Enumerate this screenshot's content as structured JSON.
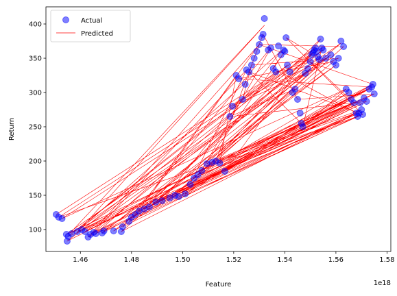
{
  "chart_data": {
    "type": "scatter",
    "xlabel": "Feature",
    "ylabel": "Return",
    "x_offset_label": "1e18",
    "xlim": [
      1.4465,
      1.5815
    ],
    "ylim": [
      68,
      425
    ],
    "x_ticks": [
      1.46,
      1.48,
      1.5,
      1.52,
      1.54,
      1.56,
      1.58
    ],
    "x_tick_labels": [
      "1.46",
      "1.48",
      "1.50",
      "1.52",
      "1.54",
      "1.56",
      "1.58"
    ],
    "y_ticks": [
      100,
      150,
      200,
      250,
      300,
      350,
      400
    ],
    "y_tick_labels": [
      "100",
      "150",
      "200",
      "250",
      "300",
      "350",
      "400"
    ],
    "grid": false,
    "legend": {
      "position": "top-left",
      "entries": [
        {
          "label": "Actual",
          "marker": "circle",
          "color": "#0000ff"
        },
        {
          "label": "Predicted",
          "marker": "line",
          "color": "#ff0000"
        }
      ]
    },
    "series": [
      {
        "name": "Actual",
        "kind": "scatter",
        "color": "#0000ff",
        "alpha": 0.5,
        "points": [
          [
            1.4505,
            122
          ],
          [
            1.4515,
            118
          ],
          [
            1.4528,
            116
          ],
          [
            1.4545,
            93
          ],
          [
            1.4552,
            90
          ],
          [
            1.4548,
            83
          ],
          [
            1.4565,
            94
          ],
          [
            1.4588,
            97
          ],
          [
            1.4605,
            100
          ],
          [
            1.4618,
            97
          ],
          [
            1.463,
            89
          ],
          [
            1.464,
            93
          ],
          [
            1.4652,
            96
          ],
          [
            1.466,
            94
          ],
          [
            1.4685,
            95
          ],
          [
            1.4692,
            98
          ],
          [
            1.473,
            98
          ],
          [
            1.476,
            97
          ],
          [
            1.4765,
            104
          ],
          [
            1.479,
            112
          ],
          [
            1.48,
            118
          ],
          [
            1.4815,
            122
          ],
          [
            1.483,
            127
          ],
          [
            1.485,
            130
          ],
          [
            1.487,
            133
          ],
          [
            1.4895,
            140
          ],
          [
            1.492,
            142
          ],
          [
            1.495,
            146
          ],
          [
            1.497,
            150
          ],
          [
            1.4985,
            148
          ],
          [
            1.501,
            152
          ],
          [
            1.503,
            166
          ],
          [
            1.5045,
            175
          ],
          [
            1.506,
            180
          ],
          [
            1.5075,
            186
          ],
          [
            1.5095,
            196
          ],
          [
            1.5115,
            198
          ],
          [
            1.513,
            200
          ],
          [
            1.5145,
            197
          ],
          [
            1.5165,
            185
          ],
          [
            1.5185,
            265
          ],
          [
            1.5195,
            280
          ],
          [
            1.521,
            325
          ],
          [
            1.522,
            320
          ],
          [
            1.5235,
            290
          ],
          [
            1.5245,
            312
          ],
          [
            1.525,
            333
          ],
          [
            1.526,
            330
          ],
          [
            1.527,
            340
          ],
          [
            1.528,
            350
          ],
          [
            1.529,
            360
          ],
          [
            1.53,
            370
          ],
          [
            1.531,
            380
          ],
          [
            1.5315,
            385
          ],
          [
            1.532,
            408
          ],
          [
            1.5335,
            362
          ],
          [
            1.5345,
            365
          ],
          [
            1.5355,
            335
          ],
          [
            1.5365,
            330
          ],
          [
            1.5375,
            368
          ],
          [
            1.5385,
            355
          ],
          [
            1.5395,
            362
          ],
          [
            1.54,
            360
          ],
          [
            1.5405,
            380
          ],
          [
            1.541,
            340
          ],
          [
            1.542,
            330
          ],
          [
            1.543,
            300
          ],
          [
            1.544,
            305
          ],
          [
            1.545,
            290
          ],
          [
            1.546,
            270
          ],
          [
            1.5465,
            255
          ],
          [
            1.547,
            250
          ],
          [
            1.548,
            328
          ],
          [
            1.549,
            335
          ],
          [
            1.55,
            345
          ],
          [
            1.5505,
            355
          ],
          [
            1.551,
            358
          ],
          [
            1.5515,
            362
          ],
          [
            1.552,
            365
          ],
          [
            1.5525,
            360
          ],
          [
            1.553,
            352
          ],
          [
            1.5535,
            348
          ],
          [
            1.554,
            378
          ],
          [
            1.5545,
            365
          ],
          [
            1.555,
            362
          ],
          [
            1.556,
            350
          ],
          [
            1.558,
            355
          ],
          [
            1.559,
            345
          ],
          [
            1.56,
            340
          ],
          [
            1.561,
            350
          ],
          [
            1.562,
            375
          ],
          [
            1.563,
            367
          ],
          [
            1.564,
            305
          ],
          [
            1.565,
            300
          ],
          [
            1.566,
            290
          ],
          [
            1.567,
            285
          ],
          [
            1.568,
            270
          ],
          [
            1.5685,
            265
          ],
          [
            1.569,
            270
          ],
          [
            1.5695,
            285
          ],
          [
            1.57,
            275
          ],
          [
            1.5705,
            268
          ],
          [
            1.571,
            292
          ],
          [
            1.572,
            287
          ],
          [
            1.573,
            305
          ],
          [
            1.574,
            308
          ],
          [
            1.5745,
            312
          ],
          [
            1.575,
            298
          ]
        ]
      },
      {
        "name": "Predicted",
        "kind": "line",
        "color": "#ff0000",
        "points": [
          [
            1.4505,
            122
          ],
          [
            1.552,
            365
          ],
          [
            1.4548,
            83
          ],
          [
            1.574,
            308
          ],
          [
            1.456,
            95
          ],
          [
            1.532,
            398
          ],
          [
            1.459,
            97
          ],
          [
            1.569,
            270
          ],
          [
            1.463,
            89
          ],
          [
            1.555,
            362
          ],
          [
            1.4528,
            116
          ],
          [
            1.564,
            305
          ],
          [
            1.466,
            94
          ],
          [
            1.541,
            340
          ],
          [
            1.4552,
            90
          ],
          [
            1.5705,
            268
          ],
          [
            1.4692,
            98
          ],
          [
            1.56,
            340
          ],
          [
            1.473,
            98
          ],
          [
            1.5745,
            312
          ],
          [
            1.4605,
            100
          ],
          [
            1.548,
            328
          ],
          [
            1.476,
            97
          ],
          [
            1.568,
            270
          ],
          [
            1.4515,
            118
          ],
          [
            1.551,
            358
          ],
          [
            1.48,
            118
          ],
          [
            1.572,
            287
          ],
          [
            1.464,
            93
          ],
          [
            1.53,
            370
          ],
          [
            1.483,
            127
          ],
          [
            1.575,
            298
          ],
          [
            1.487,
            133
          ],
          [
            1.562,
            372
          ],
          [
            1.4545,
            93
          ],
          [
            1.566,
            290
          ],
          [
            1.492,
            142
          ],
          [
            1.539,
            362
          ],
          [
            1.4588,
            97
          ],
          [
            1.5695,
            285
          ],
          [
            1.497,
            150
          ],
          [
            1.556,
            350
          ],
          [
            1.4618,
            97
          ],
          [
            1.573,
            305
          ],
          [
            1.501,
            152
          ],
          [
            1.525,
            333
          ],
          [
            1.4652,
            96
          ],
          [
            1.571,
            292
          ],
          [
            1.5045,
            175
          ],
          [
            1.558,
            355
          ],
          [
            1.4685,
            95
          ],
          [
            1.567,
            285
          ],
          [
            1.5075,
            186
          ],
          [
            1.5345,
            365
          ],
          [
            1.4765,
            104
          ],
          [
            1.57,
            275
          ],
          [
            1.5115,
            198
          ],
          [
            1.5505,
            355
          ],
          [
            1.479,
            112
          ],
          [
            1.5685,
            265
          ],
          [
            1.5145,
            197
          ],
          [
            1.521,
            325
          ],
          [
            1.4815,
            122
          ],
          [
            1.565,
            300
          ],
          [
            1.5165,
            185
          ],
          [
            1.554,
            378
          ],
          [
            1.485,
            130
          ],
          [
            1.572,
            287
          ],
          [
            1.5185,
            265
          ],
          [
            1.544,
            305
          ],
          [
            1.4895,
            140
          ],
          [
            1.574,
            308
          ],
          [
            1.522,
            320
          ],
          [
            1.559,
            345
          ],
          [
            1.495,
            146
          ],
          [
            1.569,
            270
          ],
          [
            1.526,
            330
          ],
          [
            1.5465,
            255
          ],
          [
            1.4985,
            148
          ],
          [
            1.5745,
            312
          ],
          [
            1.53,
            370
          ],
          [
            1.563,
            367
          ],
          [
            1.503,
            166
          ],
          [
            1.568,
            270
          ],
          [
            1.5355,
            335
          ],
          [
            1.54,
            360
          ],
          [
            1.506,
            180
          ],
          [
            1.5705,
            268
          ],
          [
            1.5405,
            380
          ],
          [
            1.553,
            352
          ],
          [
            1.5095,
            196
          ],
          [
            1.575,
            298
          ],
          [
            1.545,
            290
          ],
          [
            1.5315,
            385
          ],
          [
            1.513,
            200
          ],
          [
            1.567,
            285
          ],
          [
            1.55,
            345
          ],
          [
            1.5365,
            330
          ],
          [
            1.4565,
            94
          ],
          [
            1.556,
            350
          ],
          [
            1.5235,
            290
          ],
          [
            1.527,
            340
          ],
          [
            1.561,
            350
          ],
          [
            1.5195,
            280
          ],
          [
            1.5545,
            365
          ],
          [
            1.547,
            250
          ],
          [
            1.564,
            305
          ]
        ]
      }
    ]
  }
}
